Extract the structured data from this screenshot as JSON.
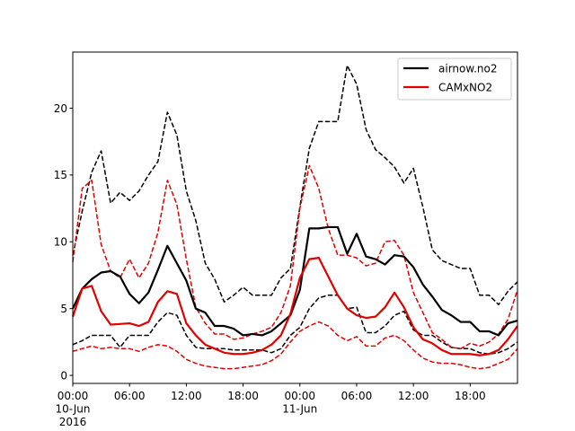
{
  "chart_data": {
    "type": "line",
    "title": "",
    "xlabel": "",
    "ylabel": "",
    "x_hours": [
      0,
      1,
      2,
      3,
      4,
      5,
      6,
      7,
      8,
      9,
      10,
      11,
      12,
      13,
      14,
      15,
      16,
      17,
      18,
      19,
      20,
      21,
      22,
      23,
      24,
      25,
      26,
      27,
      28,
      29,
      30,
      31,
      32,
      33,
      34,
      35,
      36,
      37,
      38,
      39,
      40,
      41,
      42,
      43,
      44,
      45,
      46,
      47
    ],
    "xlim": [
      0,
      47
    ],
    "ylim": [
      -0.6,
      24.2
    ],
    "yticks": [
      0,
      5,
      10,
      15,
      20
    ],
    "ytick_labels": [
      "0",
      "5",
      "10",
      "15",
      "20"
    ],
    "xticks": [
      0,
      6,
      12,
      18,
      24,
      30,
      36,
      42
    ],
    "xtick_labels": [
      [
        "00:00",
        "10-Jun",
        "2016"
      ],
      [
        "06:00"
      ],
      [
        "12:00"
      ],
      [
        "18:00"
      ],
      [
        "00:00",
        "11-Jun"
      ],
      [
        "06:00"
      ],
      [
        "12:00"
      ],
      [
        "18:00"
      ]
    ],
    "legend": {
      "placement": "top-right",
      "entries": [
        "airnow.no2",
        "CAMxNO2"
      ]
    },
    "grid": false,
    "series": [
      {
        "name": "airnow.no2",
        "color": "#000000",
        "style": "solid",
        "width": 2.2,
        "legend": true,
        "values": [
          5.0,
          6.5,
          7.2,
          7.7,
          7.8,
          7.4,
          6.1,
          5.4,
          6.2,
          7.9,
          9.7,
          8.4,
          7.1,
          5.0,
          4.7,
          3.7,
          3.7,
          3.5,
          3.0,
          3.1,
          3.0,
          3.3,
          3.9,
          4.5,
          6.4,
          11.0,
          11.0,
          11.1,
          11.1,
          9.1,
          10.6,
          8.9,
          8.7,
          8.3,
          9.0,
          8.9,
          8.1,
          6.8,
          5.9,
          4.9,
          4.5,
          4.0,
          4.0,
          3.3,
          3.3,
          3.0,
          3.9,
          4.1
        ]
      },
      {
        "name": "airnow.no2 upper",
        "color": "#000000",
        "style": "dashed",
        "width": 1.5,
        "legend": false,
        "values": [
          9.0,
          12.3,
          15.2,
          16.8,
          12.9,
          13.7,
          13.1,
          13.8,
          15.0,
          16.0,
          19.7,
          18.0,
          13.8,
          11.6,
          8.4,
          7.2,
          5.5,
          6.0,
          6.6,
          6.0,
          6.0,
          6.0,
          7.3,
          8.0,
          12.6,
          17.0,
          19.0,
          19.0,
          19.0,
          23.2,
          21.8,
          18.4,
          16.9,
          16.3,
          15.6,
          14.4,
          15.5,
          12.6,
          9.4,
          8.6,
          8.3,
          8.0,
          8.0,
          6.0,
          6.0,
          5.3,
          6.3,
          7.0
        ]
      },
      {
        "name": "airnow.no2 lower",
        "color": "#000000",
        "style": "dashed",
        "width": 1.5,
        "legend": false,
        "values": [
          2.3,
          2.6,
          3.0,
          3.0,
          3.0,
          2.1,
          3.0,
          3.0,
          3.0,
          4.0,
          4.7,
          4.5,
          3.0,
          2.1,
          2.0,
          2.0,
          2.0,
          1.9,
          1.9,
          1.9,
          1.9,
          1.7,
          2.0,
          3.0,
          3.6,
          5.0,
          5.8,
          6.0,
          6.0,
          5.0,
          5.1,
          3.2,
          3.2,
          3.7,
          4.5,
          4.8,
          3.4,
          3.0,
          3.0,
          2.5,
          2.1,
          2.0,
          2.0,
          1.7,
          1.6,
          1.7,
          2.0,
          2.5
        ]
      },
      {
        "name": "CAMxNO2",
        "color": "#e00000",
        "style": "solid",
        "width": 2.2,
        "legend": true,
        "values": [
          4.4,
          6.5,
          6.7,
          4.8,
          3.8,
          3.85,
          3.9,
          3.7,
          4.0,
          5.5,
          6.3,
          6.1,
          3.9,
          3.0,
          2.3,
          2.0,
          1.7,
          1.6,
          1.6,
          1.7,
          1.9,
          2.3,
          3.0,
          4.6,
          7.3,
          8.7,
          8.8,
          7.4,
          6.0,
          5.0,
          4.5,
          4.3,
          4.4,
          5.1,
          6.2,
          5.1,
          3.6,
          2.7,
          2.4,
          1.9,
          1.6,
          1.6,
          1.6,
          1.5,
          1.6,
          1.9,
          2.7,
          3.7
        ]
      },
      {
        "name": "CAMxNO2 upper",
        "color": "#e00000",
        "style": "dashed",
        "width": 1.5,
        "legend": false,
        "values": [
          8.5,
          14.0,
          14.6,
          9.8,
          7.8,
          7.3,
          8.7,
          7.3,
          8.4,
          10.7,
          14.6,
          12.8,
          8.7,
          5.1,
          3.9,
          3.1,
          3.1,
          2.7,
          2.8,
          3.1,
          3.3,
          3.6,
          4.7,
          6.7,
          12.5,
          15.7,
          14.0,
          11.0,
          9.0,
          9.0,
          8.8,
          8.2,
          8.4,
          10.0,
          10.1,
          9.0,
          6.2,
          4.7,
          3.2,
          2.7,
          2.1,
          2.0,
          2.4,
          2.2,
          2.5,
          3.1,
          4.2,
          6.4
        ]
      },
      {
        "name": "CAMxNO2 lower",
        "color": "#e00000",
        "style": "dashed",
        "width": 1.5,
        "legend": false,
        "values": [
          1.8,
          2.0,
          2.2,
          2.0,
          2.1,
          2.0,
          2.0,
          1.8,
          2.1,
          2.3,
          2.2,
          1.8,
          1.2,
          0.9,
          0.7,
          0.6,
          0.5,
          0.5,
          0.6,
          0.7,
          0.8,
          1.1,
          1.6,
          2.5,
          3.3,
          3.7,
          4.0,
          3.7,
          3.0,
          2.6,
          2.9,
          2.2,
          2.2,
          2.8,
          3.0,
          2.6,
          1.9,
          1.3,
          1.0,
          0.9,
          0.9,
          0.8,
          0.6,
          0.5,
          0.6,
          0.9,
          1.2,
          2.0
        ]
      }
    ]
  }
}
